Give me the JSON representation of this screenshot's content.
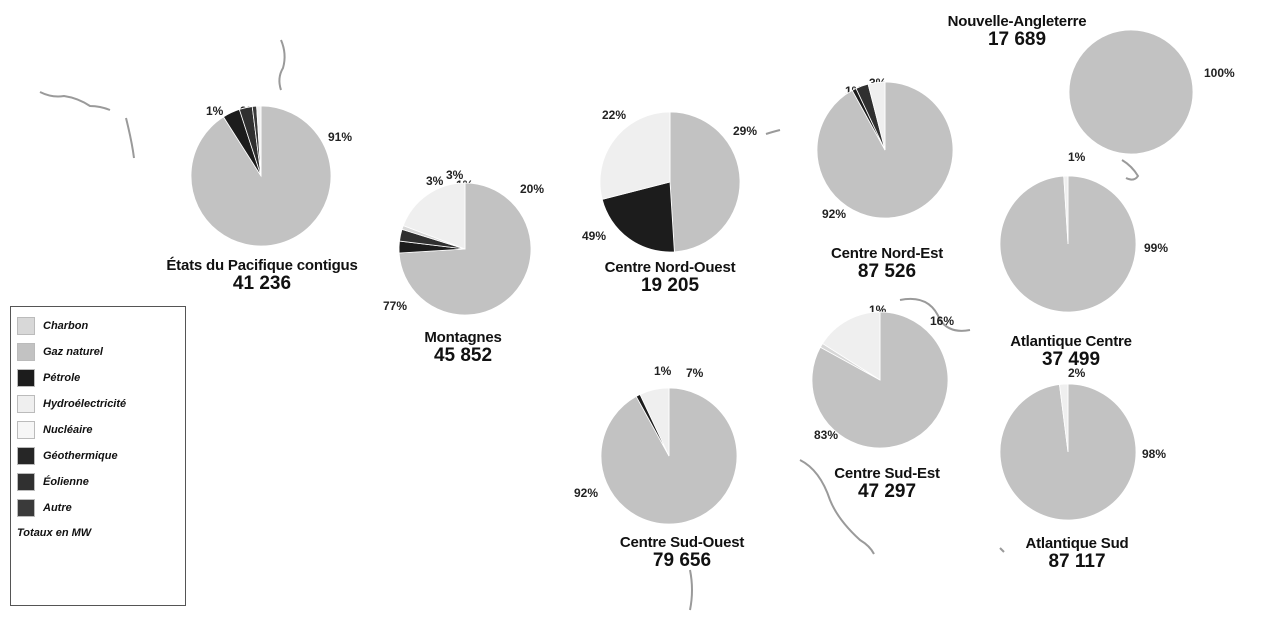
{
  "colors": {
    "coal": "#d8d8d8",
    "natural_gas": "#c2c2c2",
    "petroleum": "#1c1c1c",
    "hydro": "#efefef",
    "nuclear": "#f6f6f6",
    "geothermal": "#262626",
    "wind": "#303030",
    "other": "#3a3a3a",
    "map": "#9a9a9a"
  },
  "legend": {
    "items": [
      {
        "key": "coal",
        "label": "Charbon"
      },
      {
        "key": "natural_gas",
        "label": "Gaz naturel"
      },
      {
        "key": "petroleum",
        "label": "Pétrole"
      },
      {
        "key": "hydro",
        "label": "Hydroélectricité"
      },
      {
        "key": "nuclear",
        "label": "Nucléaire"
      },
      {
        "key": "geothermal",
        "label": "Géothermique"
      },
      {
        "key": "wind",
        "label": "Éolienne"
      },
      {
        "key": "other",
        "label": "Autre"
      }
    ],
    "unit": "Totaux en MW"
  },
  "regions": [
    {
      "id": "pacific",
      "name": "États du Pacifique contigus",
      "total": "41 236",
      "slices": [
        {
          "source": "natural_gas",
          "value": 91,
          "label": "91%"
        },
        {
          "source": "petroleum",
          "value": 4,
          "label": "4%"
        },
        {
          "source": "wind",
          "value": 3,
          "label": "3%"
        },
        {
          "source": "other",
          "value": 1,
          "label": "1%"
        },
        {
          "source": "hydro",
          "value": 1,
          "label": "1%"
        }
      ]
    },
    {
      "id": "mountains",
      "name": "Montagnes",
      "total": "45 852",
      "slices": [
        {
          "source": "natural_gas",
          "value": 77,
          "label": "77%"
        },
        {
          "source": "petroleum",
          "value": 3,
          "label": "3%"
        },
        {
          "source": "wind",
          "value": 3,
          "label": "3%"
        },
        {
          "source": "coal",
          "value": 1,
          "label": "1%"
        },
        {
          "source": "hydro",
          "value": 20,
          "label": "20%"
        }
      ]
    },
    {
      "id": "northwest-center",
      "name": "Centre Nord-Ouest",
      "total": "19 205",
      "slices": [
        {
          "source": "natural_gas",
          "value": 49,
          "label": "49%"
        },
        {
          "source": "petroleum",
          "value": 22,
          "label": "22%"
        },
        {
          "source": "hydro",
          "value": 29,
          "label": "29%"
        }
      ]
    },
    {
      "id": "northeast-center",
      "name": "Centre Nord-Est",
      "total": "87 526",
      "slices": [
        {
          "source": "natural_gas",
          "value": 92,
          "label": "92%"
        },
        {
          "source": "petroleum",
          "value": 1,
          "label": "1%"
        },
        {
          "source": "wind",
          "value": 3,
          "label": "3%"
        },
        {
          "source": "hydro",
          "value": 4,
          "label": "4%"
        }
      ]
    },
    {
      "id": "new-england",
      "name": "Nouvelle-Angleterre",
      "total": "17 689",
      "slices": [
        {
          "source": "natural_gas",
          "value": 100,
          "label": "100%"
        }
      ]
    },
    {
      "id": "mid-atlantic",
      "name": "Atlantique Centre",
      "total": "37 499",
      "slices": [
        {
          "source": "natural_gas",
          "value": 99,
          "label": "99%"
        },
        {
          "source": "hydro",
          "value": 1,
          "label": "1%"
        }
      ]
    },
    {
      "id": "southwest-center",
      "name": "Centre Sud-Ouest",
      "total": "79 656",
      "slices": [
        {
          "source": "natural_gas",
          "value": 92,
          "label": "92%"
        },
        {
          "source": "petroleum",
          "value": 1,
          "label": "1%"
        },
        {
          "source": "hydro",
          "value": 7,
          "label": "7%"
        }
      ]
    },
    {
      "id": "southeast-center",
      "name": "Centre Sud-Est",
      "total": "47 297",
      "slices": [
        {
          "source": "natural_gas",
          "value": 83,
          "label": "83%"
        },
        {
          "source": "coal",
          "value": 1,
          "label": "1%"
        },
        {
          "source": "hydro",
          "value": 16,
          "label": "16%"
        }
      ]
    },
    {
      "id": "south-atlantic",
      "name": "Atlantique Sud",
      "total": "87 117",
      "slices": [
        {
          "source": "natural_gas",
          "value": 98,
          "label": "98%"
        },
        {
          "source": "hydro",
          "value": 2,
          "label": "2%"
        }
      ]
    }
  ]
}
